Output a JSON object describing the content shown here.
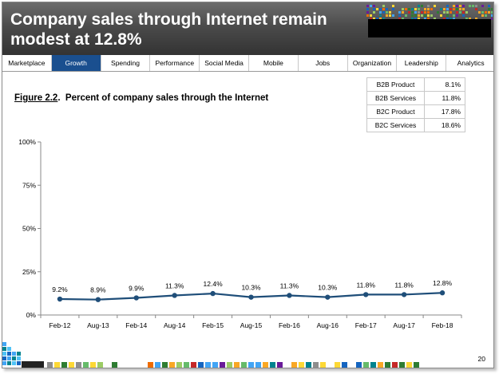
{
  "header": {
    "title": "Company sales through Internet remain modest at 12.8%"
  },
  "nav": {
    "tabs": [
      {
        "label": "Marketplace",
        "active": false
      },
      {
        "label": "Growth",
        "active": true
      },
      {
        "label": "Spending",
        "active": false
      },
      {
        "label": "Performance",
        "active": false
      },
      {
        "label": "Social Media",
        "active": false
      },
      {
        "label": "Mobile",
        "active": false
      },
      {
        "label": "Jobs",
        "active": false
      },
      {
        "label": "Organization",
        "active": false
      },
      {
        "label": "Leadership",
        "active": false
      },
      {
        "label": "Analytics",
        "active": false
      }
    ]
  },
  "figure": {
    "number": "Figure 2.2",
    "title": "Percent of company sales through the Internet"
  },
  "breakdown": [
    {
      "label": "B2B Product",
      "value": "8.1%"
    },
    {
      "label": "B2B Services",
      "value": "11.8%"
    },
    {
      "label": "B2C Product",
      "value": "17.8%"
    },
    {
      "label": "B2C Services",
      "value": "18.6%"
    }
  ],
  "chart_data": {
    "type": "line",
    "title": "",
    "xlabel": "",
    "ylabel": "",
    "categories": [
      "Feb-12",
      "Aug-13",
      "Feb-14",
      "Aug-14",
      "Feb-15",
      "Aug-15",
      "Feb-16",
      "Aug-16",
      "Feb-17",
      "Aug-17",
      "Feb-18"
    ],
    "values": [
      9.2,
      8.9,
      9.9,
      11.3,
      12.4,
      10.3,
      11.3,
      10.3,
      11.8,
      11.8,
      12.8
    ],
    "data_labels": [
      "9.2%",
      "8.9%",
      "9.9%",
      "11.3%",
      "12.4%",
      "10.3%",
      "11.3%",
      "10.3%",
      "11.8%",
      "11.8%",
      "12.8%"
    ],
    "ylim": [
      0,
      100
    ],
    "yticks": [
      0,
      25,
      50,
      75,
      100
    ],
    "ytick_labels": [
      "0%",
      "25%",
      "50%",
      "75%",
      "100%"
    ],
    "grid": false,
    "line_color": "#1f4e79"
  },
  "page_number": "20",
  "colors": {
    "accent": "#1a4f8f",
    "header_bg": "#4b4b4b"
  }
}
